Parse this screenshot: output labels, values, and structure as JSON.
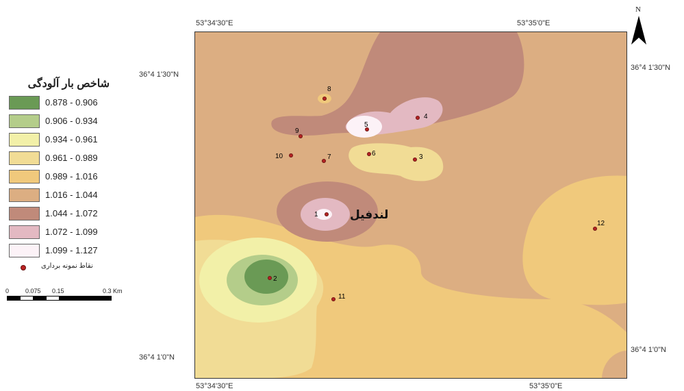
{
  "coordinates": {
    "top_left": "53°34'30\"E",
    "top_right": "53°35'0\"E",
    "bottom_left": "53°34'30\"E",
    "bottom_right": "53°35'0\"E",
    "left_top": "36°4 1'30\"N",
    "right_top": "36°4 1'30\"N",
    "left_bottom": "36°4 1'0\"N",
    "right_bottom": "36°4 1'0\"N"
  },
  "north_arrow": {
    "label": "N",
    "icon": "north-arrow-icon"
  },
  "legend": {
    "title": "شاخص بار آلودگی",
    "classes": [
      {
        "range": "0.878 - 0.906",
        "color": "#6a9a55"
      },
      {
        "range": "0.906 - 0.934",
        "color": "#b4cd8a"
      },
      {
        "range": "0.934 - 0.961",
        "color": "#f2f0a8"
      },
      {
        "range": "0.961 - 0.989",
        "color": "#f1dc95"
      },
      {
        "range": "0.989 - 1.016",
        "color": "#f0c97c"
      },
      {
        "range": "1.016 - 1.044",
        "color": "#dcae82"
      },
      {
        "range": "1.044 - 1.072",
        "color": "#c08a7a"
      },
      {
        "range": "1.072 - 1.099",
        "color": "#e3b9c2"
      },
      {
        "range": "1.099 - 1.127",
        "color": "#fcf2f7"
      }
    ],
    "samples_label": "نقاط نمونه برداری"
  },
  "scale": {
    "labels": [
      "0",
      "0.075",
      "0.15",
      "0.3 Km"
    ]
  },
  "map": {
    "place_label": "لندفیل",
    "points": [
      "1",
      "2",
      "3",
      "4",
      "5",
      "6",
      "7",
      "8",
      "9",
      "10",
      "11",
      "12"
    ]
  }
}
